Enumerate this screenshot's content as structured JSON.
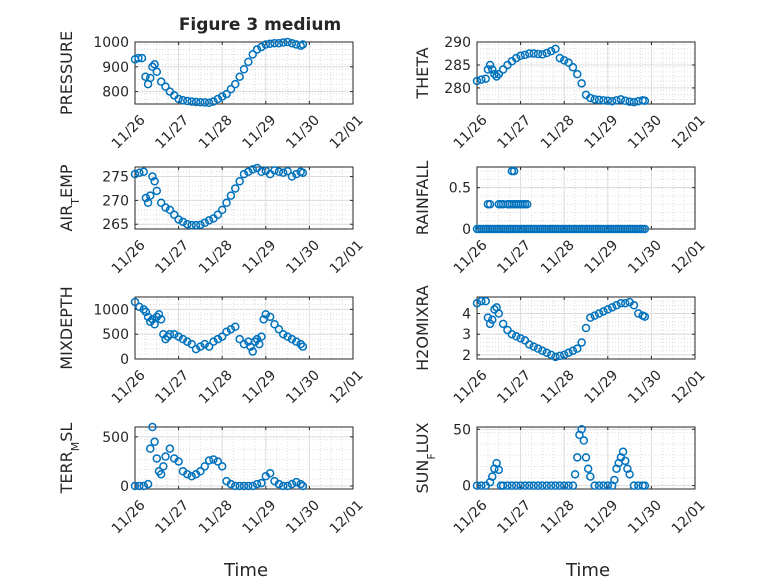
{
  "figure_title": "Figure 3 medium",
  "xlabel": "Time",
  "x_tick_labels": [
    "11/26",
    "11/27",
    "11/28",
    "11/29",
    "11/30",
    "12/01"
  ],
  "colors": {
    "marker": "#0072BD",
    "axis": "#262626",
    "grid": "#DCDCDC",
    "background": "#FFFFFF"
  },
  "chart_data": [
    {
      "type": "scatter",
      "ylabel": "PRESSURE",
      "x_unit": "days since 11/26",
      "xlim": [
        0,
        5
      ],
      "ylim": [
        750,
        1000
      ],
      "yticks": [
        800,
        900,
        1000
      ],
      "ytick_labels": [
        "800",
        "900",
        "1000"
      ],
      "grid": true,
      "series": [
        {
          "x": [
            0.0,
            0.08,
            0.16,
            0.24,
            0.3,
            0.35,
            0.4,
            0.45,
            0.5,
            0.6,
            0.7,
            0.8,
            0.9,
            1.0,
            1.1,
            1.2,
            1.3,
            1.4,
            1.5,
            1.6,
            1.7,
            1.8,
            1.9,
            2.0,
            2.1,
            2.2,
            2.3,
            2.4,
            2.5,
            2.6,
            2.7,
            2.8,
            2.9,
            3.0,
            3.1,
            3.2,
            3.3,
            3.4,
            3.5,
            3.6,
            3.7,
            3.8,
            3.85
          ],
          "y": [
            930,
            935,
            935,
            860,
            830,
            855,
            900,
            910,
            880,
            840,
            820,
            800,
            785,
            770,
            765,
            762,
            760,
            758,
            757,
            756,
            755,
            760,
            770,
            780,
            790,
            810,
            830,
            860,
            890,
            920,
            950,
            970,
            980,
            990,
            993,
            995,
            995,
            998,
            1000,
            995,
            990,
            985,
            990
          ]
        }
      ]
    },
    {
      "type": "scatter",
      "ylabel": "THETA",
      "x_unit": "days since 11/26",
      "xlim": [
        0,
        5
      ],
      "ylim": [
        276.5,
        290
      ],
      "yticks": [
        280,
        285,
        290
      ],
      "ytick_labels": [
        "280",
        "285",
        "290"
      ],
      "grid": true,
      "series": [
        {
          "x": [
            0.0,
            0.1,
            0.2,
            0.25,
            0.3,
            0.35,
            0.4,
            0.45,
            0.5,
            0.6,
            0.7,
            0.8,
            0.9,
            1.0,
            1.1,
            1.2,
            1.3,
            1.4,
            1.5,
            1.6,
            1.7,
            1.8,
            1.9,
            2.0,
            2.1,
            2.2,
            2.3,
            2.4,
            2.5,
            2.6,
            2.7,
            2.8,
            2.9,
            3.0,
            3.1,
            3.2,
            3.3,
            3.4,
            3.5,
            3.6,
            3.7,
            3.8,
            3.85
          ],
          "y": [
            281.5,
            281.8,
            282,
            284,
            285,
            284,
            283,
            282.5,
            283,
            284,
            285,
            285.8,
            286.5,
            287,
            287.2,
            287.5,
            287.5,
            287.4,
            287.3,
            287.6,
            288,
            288.5,
            286.5,
            286,
            285.5,
            284.5,
            283,
            281,
            278.5,
            277.8,
            277.5,
            277.4,
            277.3,
            277.2,
            277.1,
            277.3,
            277.5,
            277.2,
            277,
            276.9,
            277.1,
            277.3,
            277.2
          ]
        }
      ]
    },
    {
      "type": "scatter",
      "ylabel": "AIR_TEMP",
      "x_unit": "days since 11/26",
      "xlim": [
        0,
        5
      ],
      "ylim": [
        264,
        277
      ],
      "yticks": [
        265,
        270,
        275
      ],
      "ytick_labels": [
        "265",
        "270",
        "275"
      ],
      "grid": true,
      "series": [
        {
          "x": [
            0.0,
            0.1,
            0.2,
            0.25,
            0.3,
            0.35,
            0.4,
            0.45,
            0.5,
            0.6,
            0.7,
            0.8,
            0.9,
            1.0,
            1.1,
            1.2,
            1.3,
            1.4,
            1.5,
            1.6,
            1.7,
            1.8,
            1.9,
            2.0,
            2.1,
            2.2,
            2.3,
            2.4,
            2.5,
            2.6,
            2.7,
            2.8,
            2.9,
            3.0,
            3.1,
            3.2,
            3.3,
            3.4,
            3.5,
            3.6,
            3.7,
            3.8,
            3.85
          ],
          "y": [
            275.5,
            275.8,
            276,
            270.5,
            269.5,
            271,
            275,
            274,
            272,
            269.5,
            268.5,
            268,
            267,
            266,
            265.5,
            265,
            264.8,
            264.8,
            264.9,
            265.3,
            265.8,
            266.2,
            267,
            268,
            269.5,
            271,
            272.5,
            274,
            275.5,
            276,
            276.5,
            276.8,
            276,
            276.2,
            275.5,
            276.3,
            276,
            275.8,
            276.1,
            275,
            275.5,
            276,
            275.8
          ]
        }
      ]
    },
    {
      "type": "scatter",
      "ylabel": "RAINFALL",
      "x_unit": "days since 11/26",
      "xlim": [
        0,
        5
      ],
      "ylim": [
        0,
        0.75
      ],
      "yticks": [
        0,
        0.5
      ],
      "ytick_labels": [
        "0",
        "0.5"
      ],
      "grid": true,
      "series": [
        {
          "x": [
            0.0,
            0.05,
            0.1,
            0.15,
            0.2,
            0.25,
            0.3,
            0.35,
            0.4,
            0.45,
            0.5,
            0.55,
            0.6,
            0.65,
            0.7,
            0.75,
            0.8,
            0.85,
            0.9,
            0.95,
            1.0,
            1.05,
            1.1,
            1.15,
            1.2,
            1.25,
            1.3,
            1.35,
            1.4,
            1.45,
            1.5,
            1.55,
            1.6,
            1.65,
            1.7,
            1.75,
            1.8,
            1.85,
            1.9,
            1.95,
            2.0,
            2.05,
            2.1,
            2.15,
            2.2,
            2.25,
            2.3,
            2.35,
            2.4,
            2.45,
            2.5,
            2.55,
            2.6,
            2.65,
            2.7,
            2.75,
            2.8,
            2.85,
            2.9,
            2.95,
            3.0,
            3.05,
            3.1,
            3.15,
            3.2,
            3.25,
            3.3,
            3.35,
            3.4,
            3.45,
            3.5,
            3.55,
            3.6,
            3.65,
            3.7,
            3.75,
            3.8,
            3.85,
            0.25,
            0.3,
            0.5,
            0.55,
            0.6,
            0.7,
            0.75,
            0.8,
            0.85,
            0.9,
            0.95,
            1.0,
            1.05,
            1.1,
            1.15,
            0.8,
            0.85
          ],
          "y": [
            0,
            0,
            0,
            0,
            0,
            0,
            0,
            0,
            0,
            0,
            0,
            0,
            0,
            0,
            0,
            0,
            0,
            0,
            0,
            0,
            0,
            0,
            0,
            0,
            0,
            0,
            0,
            0,
            0,
            0,
            0,
            0,
            0,
            0,
            0,
            0,
            0,
            0,
            0,
            0,
            0,
            0,
            0,
            0,
            0,
            0,
            0,
            0,
            0,
            0,
            0,
            0,
            0,
            0,
            0,
            0,
            0,
            0,
            0,
            0,
            0,
            0,
            0,
            0,
            0,
            0,
            0,
            0,
            0,
            0,
            0,
            0,
            0,
            0,
            0,
            0,
            0,
            0,
            0.3,
            0.3,
            0.3,
            0.3,
            0.3,
            0.3,
            0.3,
            0.3,
            0.3,
            0.3,
            0.3,
            0.3,
            0.3,
            0.3,
            0.3,
            0.7,
            0.7
          ]
        }
      ]
    },
    {
      "type": "scatter",
      "ylabel": "MIXDEPTH",
      "x_unit": "days since 11/26",
      "xlim": [
        0,
        5
      ],
      "ylim": [
        0,
        1250
      ],
      "yticks": [
        0,
        500,
        1000
      ],
      "ytick_labels": [
        "0",
        "500",
        "1000"
      ],
      "grid": true,
      "series": [
        {
          "x": [
            0.0,
            0.1,
            0.2,
            0.25,
            0.3,
            0.35,
            0.4,
            0.45,
            0.5,
            0.55,
            0.6,
            0.65,
            0.7,
            0.75,
            0.8,
            0.9,
            1.0,
            1.1,
            1.2,
            1.3,
            1.4,
            1.5,
            1.6,
            1.7,
            1.8,
            1.9,
            2.0,
            2.1,
            2.2,
            2.3,
            2.4,
            2.5,
            2.6,
            2.65,
            2.7,
            2.75,
            2.8,
            2.85,
            2.9,
            2.95,
            3.0,
            3.1,
            3.2,
            3.3,
            3.4,
            3.5,
            3.6,
            3.7,
            3.8,
            3.85
          ],
          "y": [
            1150,
            1050,
            1000,
            950,
            850,
            750,
            800,
            700,
            850,
            900,
            800,
            500,
            400,
            450,
            500,
            500,
            450,
            400,
            350,
            300,
            200,
            250,
            300,
            250,
            350,
            400,
            450,
            550,
            600,
            650,
            400,
            300,
            350,
            250,
            150,
            350,
            400,
            300,
            450,
            800,
            900,
            850,
            700,
            600,
            500,
            450,
            400,
            350,
            300,
            250
          ]
        }
      ]
    },
    {
      "type": "scatter",
      "ylabel": "H2OMIXRA",
      "x_unit": "days since 11/26",
      "xlim": [
        0,
        5
      ],
      "ylim": [
        1.8,
        4.8
      ],
      "yticks": [
        2,
        3,
        4
      ],
      "ytick_labels": [
        "2",
        "3",
        "4"
      ],
      "grid": true,
      "series": [
        {
          "x": [
            0.0,
            0.1,
            0.2,
            0.25,
            0.3,
            0.35,
            0.4,
            0.45,
            0.5,
            0.6,
            0.7,
            0.8,
            0.9,
            1.0,
            1.1,
            1.2,
            1.3,
            1.4,
            1.5,
            1.6,
            1.7,
            1.8,
            1.9,
            2.0,
            2.1,
            2.2,
            2.3,
            2.4,
            2.5,
            2.6,
            2.7,
            2.8,
            2.9,
            3.0,
            3.1,
            3.2,
            3.3,
            3.4,
            3.5,
            3.6,
            3.7,
            3.8,
            3.85
          ],
          "y": [
            4.5,
            4.6,
            4.6,
            3.8,
            3.5,
            3.7,
            4.2,
            4.3,
            4.0,
            3.5,
            3.2,
            3.0,
            2.9,
            2.8,
            2.7,
            2.5,
            2.4,
            2.3,
            2.2,
            2.1,
            2.0,
            1.9,
            1.95,
            2.0,
            2.1,
            2.2,
            2.3,
            2.6,
            3.3,
            3.8,
            3.9,
            4.0,
            4.1,
            4.2,
            4.3,
            4.4,
            4.5,
            4.5,
            4.55,
            4.4,
            4.0,
            3.9,
            3.85
          ]
        }
      ]
    },
    {
      "type": "scatter",
      "ylabel": "TERR_MSL",
      "x_unit": "days since 11/26",
      "xlim": [
        0,
        5
      ],
      "ylim": [
        -30,
        600
      ],
      "yticks": [
        0,
        500
      ],
      "ytick_labels": [
        "0",
        "500"
      ],
      "grid": true,
      "series": [
        {
          "x": [
            0.0,
            0.1,
            0.2,
            0.3,
            0.35,
            0.4,
            0.45,
            0.5,
            0.55,
            0.6,
            0.65,
            0.7,
            0.8,
            0.9,
            1.0,
            1.1,
            1.2,
            1.3,
            1.4,
            1.5,
            1.6,
            1.7,
            1.8,
            1.9,
            2.0,
            2.1,
            2.2,
            2.3,
            2.4,
            2.5,
            2.6,
            2.7,
            2.8,
            2.9,
            3.0,
            3.1,
            3.2,
            3.3,
            3.4,
            3.5,
            3.6,
            3.7,
            3.8,
            3.85
          ],
          "y": [
            0,
            0,
            0,
            20,
            380,
            600,
            450,
            280,
            150,
            120,
            200,
            300,
            380,
            280,
            250,
            150,
            120,
            100,
            120,
            150,
            200,
            260,
            270,
            250,
            200,
            50,
            20,
            0,
            0,
            0,
            0,
            0,
            20,
            30,
            100,
            130,
            50,
            20,
            0,
            0,
            20,
            40,
            20,
            0
          ]
        }
      ]
    },
    {
      "type": "scatter",
      "ylabel": "SUN_FLUX",
      "x_unit": "days since 11/26",
      "xlim": [
        0,
        5
      ],
      "ylim": [
        -3,
        52
      ],
      "yticks": [
        0,
        50
      ],
      "ytick_labels": [
        "0",
        "50"
      ],
      "grid": true,
      "series": [
        {
          "x": [
            0.0,
            0.1,
            0.2,
            0.3,
            0.35,
            0.4,
            0.45,
            0.5,
            0.55,
            0.6,
            0.7,
            0.8,
            0.9,
            1.0,
            1.1,
            1.2,
            1.3,
            1.4,
            1.5,
            1.6,
            1.7,
            1.8,
            1.9,
            2.0,
            2.1,
            2.2,
            2.25,
            2.3,
            2.35,
            2.4,
            2.45,
            2.5,
            2.55,
            2.6,
            2.7,
            2.8,
            2.9,
            3.0,
            3.1,
            3.15,
            3.2,
            3.25,
            3.3,
            3.35,
            3.4,
            3.45,
            3.5,
            3.6,
            3.7,
            3.8,
            3.85
          ],
          "y": [
            0,
            0,
            0,
            3,
            8,
            15,
            20,
            14,
            0,
            0,
            0,
            0,
            0,
            0,
            0,
            0,
            0,
            0,
            0,
            0,
            0,
            0,
            0,
            0,
            0,
            0,
            10,
            25,
            45,
            50,
            40,
            25,
            15,
            8,
            0,
            0,
            0,
            0,
            0,
            5,
            15,
            20,
            25,
            30,
            22,
            15,
            10,
            0,
            0,
            0,
            0
          ]
        }
      ]
    }
  ]
}
